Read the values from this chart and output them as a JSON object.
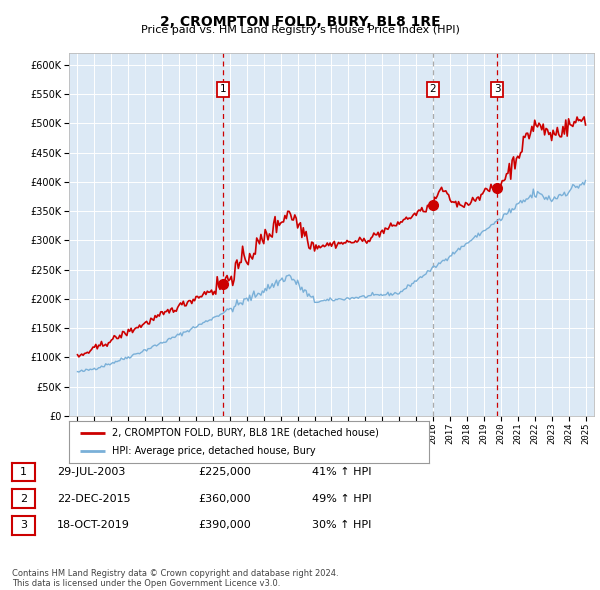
{
  "title": "2, CROMPTON FOLD, BURY, BL8 1RE",
  "subtitle": "Price paid vs. HM Land Registry's House Price Index (HPI)",
  "bg_color": "#dce9f5",
  "hpi_line_color": "#7ab0d8",
  "price_line_color": "#cc0000",
  "vline_color_red": "#cc0000",
  "vline_color_grey": "#aaaaaa",
  "ylim": [
    0,
    620000
  ],
  "yticks": [
    0,
    50000,
    100000,
    150000,
    200000,
    250000,
    300000,
    350000,
    400000,
    450000,
    500000,
    550000,
    600000
  ],
  "sales": [
    {
      "label": "1",
      "date_num": 2003.58,
      "price": 225000,
      "date_str": "29-JUL-2003",
      "pct": "41%",
      "dir": "↑",
      "vline": "red"
    },
    {
      "label": "2",
      "date_num": 2015.97,
      "price": 360000,
      "date_str": "22-DEC-2015",
      "pct": "49%",
      "dir": "↑",
      "vline": "grey"
    },
    {
      "label": "3",
      "date_num": 2019.79,
      "price": 390000,
      "date_str": "18-OCT-2019",
      "pct": "30%",
      "dir": "↑",
      "vline": "red"
    }
  ],
  "legend_entries": [
    "2, CROMPTON FOLD, BURY, BL8 1RE (detached house)",
    "HPI: Average price, detached house, Bury"
  ],
  "footer": "Contains HM Land Registry data © Crown copyright and database right 2024.\nThis data is licensed under the Open Government Licence v3.0.",
  "xlim": [
    1994.5,
    2025.5
  ],
  "xticks": [
    1995,
    1996,
    1997,
    1998,
    1999,
    2000,
    2001,
    2002,
    2003,
    2004,
    2005,
    2006,
    2007,
    2008,
    2009,
    2010,
    2011,
    2012,
    2013,
    2014,
    2015,
    2016,
    2017,
    2018,
    2019,
    2020,
    2021,
    2022,
    2023,
    2024,
    2025
  ]
}
